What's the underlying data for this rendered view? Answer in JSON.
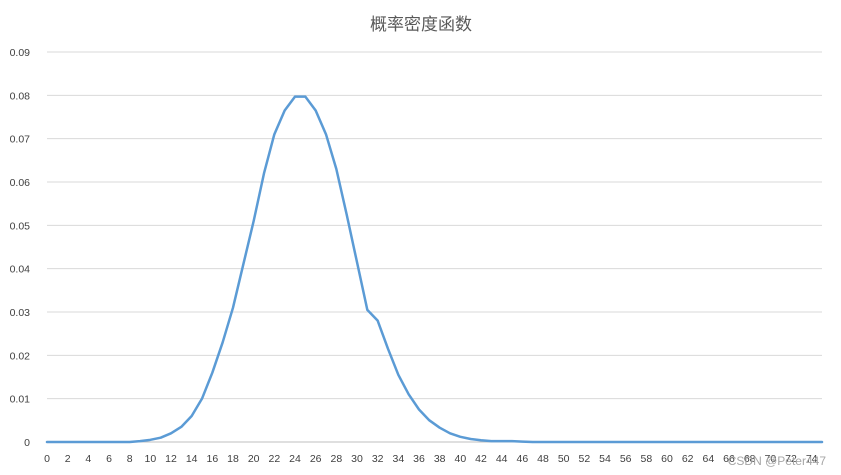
{
  "chart_data": {
    "type": "line",
    "title": "概率密度函数",
    "xlabel": "",
    "ylabel": "",
    "x": [
      0,
      1,
      2,
      3,
      4,
      5,
      6,
      7,
      8,
      9,
      10,
      11,
      12,
      13,
      14,
      15,
      16,
      17,
      18,
      19,
      20,
      21,
      22,
      23,
      24,
      25,
      26,
      27,
      28,
      29,
      30,
      31,
      32,
      33,
      34,
      35,
      36,
      37,
      38,
      39,
      40,
      41,
      42,
      43,
      44,
      45,
      46,
      47,
      48,
      49,
      50,
      51,
      52,
      53,
      54,
      55,
      56,
      57,
      58,
      59,
      60,
      61,
      62,
      63,
      64,
      65,
      66,
      67,
      68,
      69,
      70,
      71,
      72,
      73,
      74,
      75
    ],
    "xticks": [
      0,
      2,
      4,
      6,
      8,
      10,
      12,
      14,
      16,
      18,
      20,
      22,
      24,
      26,
      28,
      30,
      32,
      34,
      36,
      38,
      40,
      42,
      44,
      46,
      48,
      50,
      52,
      54,
      56,
      58,
      60,
      62,
      64,
      66,
      68,
      70,
      72,
      74
    ],
    "series": [
      {
        "values": [
          0,
          0,
          0,
          0,
          0,
          0,
          0,
          0,
          0,
          0.0002,
          0.0005,
          0.001,
          0.002,
          0.0035,
          0.006,
          0.01,
          0.016,
          0.023,
          0.031,
          0.041,
          0.051,
          0.062,
          0.071,
          0.0765,
          0.0797,
          0.0797,
          0.0765,
          0.071,
          0.063,
          0.0525,
          0.0415,
          0.0305,
          0.028,
          0.0215,
          0.0155,
          0.011,
          0.0075,
          0.005,
          0.0033,
          0.002,
          0.0012,
          0.0007,
          0.0004,
          0.0002,
          0.0002,
          0.0002,
          0.0001,
          0,
          0,
          0,
          0,
          0,
          0,
          0,
          0,
          0,
          0,
          0,
          0,
          0,
          0,
          0,
          0,
          0,
          0,
          0,
          0,
          0,
          0,
          0,
          0,
          0,
          0,
          0,
          0,
          0
        ]
      }
    ],
    "ylim": [
      0,
      0.09
    ],
    "yticks": [
      0,
      0.01,
      0.02,
      0.03,
      0.04,
      0.05,
      0.06,
      0.07,
      0.08,
      0.09
    ],
    "ytick_labels": [
      "0",
      "0.01",
      "0.02",
      "0.03",
      "0.04",
      "0.05",
      "0.06",
      "0.07",
      "0.08",
      "0.09"
    ],
    "grid": true,
    "line_color": "#5b9bd5"
  },
  "watermark": "CSDN @Peter447"
}
